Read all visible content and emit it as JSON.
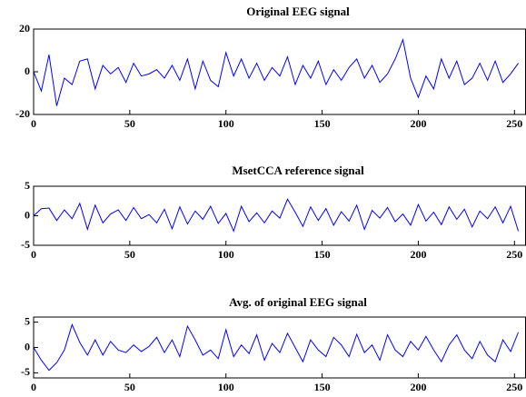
{
  "chart_data": [
    {
      "type": "line",
      "title": "Original EEG signal",
      "x": [
        0,
        4,
        8,
        12,
        16,
        20,
        24,
        28,
        32,
        36,
        40,
        44,
        48,
        52,
        56,
        60,
        64,
        68,
        72,
        76,
        80,
        84,
        88,
        92,
        96,
        100,
        104,
        108,
        112,
        116,
        120,
        124,
        128,
        132,
        136,
        140,
        144,
        148,
        152,
        156,
        160,
        164,
        168,
        172,
        176,
        180,
        184,
        188,
        192,
        196,
        200,
        204,
        208,
        212,
        216,
        220,
        224,
        228,
        232,
        236,
        240,
        244,
        248,
        252
      ],
      "values": [
        0,
        -9,
        8,
        -16,
        -3,
        -6,
        5,
        6,
        -8,
        3,
        -1,
        2,
        -5,
        4,
        -2,
        -1,
        1,
        -3,
        3,
        -4,
        6,
        -8,
        5,
        -4,
        -7,
        9,
        -2,
        6,
        -3,
        4,
        -4,
        2,
        -2,
        7,
        -6,
        3,
        -3,
        5,
        -6,
        1,
        -4,
        2,
        6,
        -3,
        3,
        -5,
        -1,
        6,
        15,
        -3,
        -12,
        -2,
        -8,
        6,
        -3,
        5,
        -6,
        -3,
        4,
        -4,
        5,
        -5,
        -1,
        4
      ],
      "color": "#0000ff",
      "xlim": [
        0,
        256
      ],
      "xticks": [
        0,
        50,
        100,
        150,
        200,
        250
      ],
      "ylim": [
        -20,
        20
      ],
      "yticks": [
        -20,
        0,
        20
      ]
    },
    {
      "type": "line",
      "title": "MsetCCA reference signal",
      "x": [
        0,
        4,
        8,
        12,
        16,
        20,
        24,
        28,
        32,
        36,
        40,
        44,
        48,
        52,
        56,
        60,
        64,
        68,
        72,
        76,
        80,
        84,
        88,
        92,
        96,
        100,
        104,
        108,
        112,
        116,
        120,
        124,
        128,
        132,
        136,
        140,
        144,
        148,
        152,
        156,
        160,
        164,
        168,
        172,
        176,
        180,
        184,
        188,
        192,
        196,
        200,
        204,
        208,
        212,
        216,
        220,
        224,
        228,
        232,
        236,
        240,
        244,
        248,
        252
      ],
      "values": [
        0,
        1.2,
        1.3,
        -0.8,
        1.0,
        -0.5,
        2.1,
        -2.3,
        1.8,
        -1.2,
        0.3,
        1.0,
        -0.8,
        1.4,
        -0.5,
        0.2,
        -1.2,
        1.1,
        -2.2,
        1.5,
        -1.4,
        0.8,
        -0.6,
        1.6,
        -1.3,
        0.4,
        -2.6,
        1.6,
        -1.0,
        0.5,
        -1.2,
        0.8,
        -0.4,
        2.8,
        0.6,
        -1.8,
        1.5,
        -0.8,
        1.2,
        -1.6,
        0.7,
        -0.9,
        1.8,
        -2.3,
        0.9,
        -0.4,
        1.4,
        -1.0,
        0.3,
        -1.6,
        1.9,
        -0.9,
        0.6,
        -1.5,
        1.5,
        -0.6,
        1.1,
        -1.9,
        0.8,
        -0.5,
        1.5,
        -1.2,
        1.6,
        -2.6
      ],
      "color": "#0000ff",
      "xlim": [
        0,
        256
      ],
      "xticks": [
        0,
        50,
        100,
        150,
        200,
        250
      ],
      "ylim": [
        -5,
        5
      ],
      "yticks": [
        -5,
        0,
        5
      ]
    },
    {
      "type": "line",
      "title": "Avg. of original EEG signal",
      "x": [
        0,
        4,
        8,
        12,
        16,
        20,
        24,
        28,
        32,
        36,
        40,
        44,
        48,
        52,
        56,
        60,
        64,
        68,
        72,
        76,
        80,
        84,
        88,
        92,
        96,
        100,
        104,
        108,
        112,
        116,
        120,
        124,
        128,
        132,
        136,
        140,
        144,
        148,
        152,
        156,
        160,
        164,
        168,
        172,
        176,
        180,
        184,
        188,
        192,
        196,
        200,
        204,
        208,
        212,
        216,
        220,
        224,
        228,
        232,
        236,
        240,
        244,
        248,
        252
      ],
      "values": [
        0,
        -2.5,
        -4.5,
        -3,
        -0.5,
        4.5,
        1,
        -1.5,
        1.5,
        -1.5,
        1.2,
        -0.5,
        -1,
        0.5,
        -0.8,
        0.2,
        2,
        -1,
        1.5,
        -1.8,
        4.2,
        1.5,
        -1.5,
        -0.5,
        -2.2,
        3.5,
        -1.8,
        0.5,
        -1.2,
        2.5,
        -2.5,
        0.8,
        -1,
        2.8,
        0,
        -2.8,
        1.5,
        -0.5,
        -1.8,
        2,
        0.5,
        -1.8,
        2.6,
        -1,
        0.5,
        -2.5,
        2.5,
        -0.5,
        -1.8,
        1.2,
        -0.5,
        2.2,
        -0.5,
        -2.8,
        0.5,
        2.5,
        -0.5,
        -2.2,
        1.2,
        -1.5,
        -2.8,
        1.5,
        -0.8,
        3
      ],
      "color": "#0000ff",
      "xlim": [
        0,
        256
      ],
      "xticks": [
        0,
        50,
        100,
        150,
        200,
        250
      ],
      "ylim": [
        -6,
        6
      ],
      "yticks": [
        -5,
        0,
        5
      ]
    }
  ]
}
